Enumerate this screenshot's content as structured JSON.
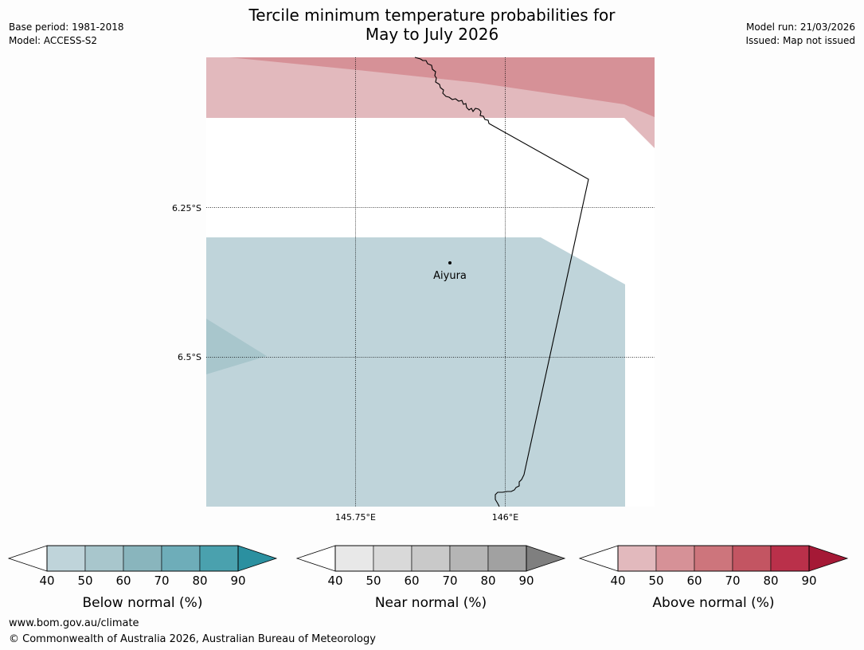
{
  "title": {
    "line1": "Tercile minimum temperature probabilities for",
    "line2": "May to July 2026"
  },
  "meta_left": {
    "base_period": "Base period: 1981-2018",
    "model": "Model: ACCESS-S2"
  },
  "meta_right": {
    "model_run": "Model run: 21/03/2026",
    "issued": "Issued: Map not issued"
  },
  "map": {
    "lat_gridlines": [
      {
        "value": -6.25,
        "label": "6.25°S"
      },
      {
        "value": -6.5,
        "label": "6.5°S"
      }
    ],
    "lon_gridlines": [
      {
        "value": 145.75,
        "label": "145.75°E"
      },
      {
        "value": 146.0,
        "label": "146°E"
      }
    ],
    "places": [
      {
        "name": "Aiyura"
      }
    ],
    "colors": {
      "below_40_50": "#bfd4da",
      "below_50_60": "#a8c6cc",
      "above_40_50": "#e2b9bd",
      "above_50_60": "#d69197",
      "coastline": "#000000"
    }
  },
  "colorbars": [
    {
      "name": "Below normal (%)",
      "ticks": [
        "40",
        "50",
        "60",
        "70",
        "80",
        "90"
      ],
      "colors": [
        "#bfd4da",
        "#a8c6cc",
        "#89b5bd",
        "#6eadb9",
        "#4aa1ae",
        "#2b90a0"
      ]
    },
    {
      "name": "Near normal (%)",
      "ticks": [
        "40",
        "50",
        "60",
        "70",
        "80",
        "90"
      ],
      "colors": [
        "#e8e8e8",
        "#d9d9d9",
        "#c9c9c9",
        "#b5b5b5",
        "#a1a1a1",
        "#7f7f7f"
      ]
    },
    {
      "name": "Above normal (%)",
      "ticks": [
        "40",
        "50",
        "60",
        "70",
        "80",
        "90"
      ],
      "colors": [
        "#e2b9bd",
        "#d69197",
        "#cd757c",
        "#c35562",
        "#ba304a",
        "#a51936"
      ]
    }
  ],
  "footer": {
    "url": "www.bom.gov.au/climate",
    "copyright": "© Commonwealth of Australia 2026, Australian Bureau of Meteorology"
  }
}
